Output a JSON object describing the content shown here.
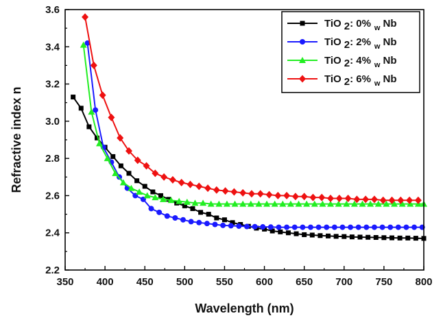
{
  "chart_data": {
    "type": "line",
    "title": "",
    "xlabel": "Wavelength (nm)",
    "ylabel": "Refractive index n",
    "xlim": [
      350,
      800
    ],
    "ylim": [
      2.2,
      3.6
    ],
    "xticks": [
      "350",
      "400",
      "450",
      "500",
      "550",
      "600",
      "650",
      "700",
      "750",
      "800"
    ],
    "yticks": [
      "2.2",
      "2.4",
      "2.6",
      "2.8",
      "3.0",
      "3.2",
      "3.4",
      "3.6"
    ],
    "grid": false,
    "legend_position": "top-right",
    "series": [
      {
        "name": "TiO 2: 0% w Nb",
        "legend": {
          "prefix": "TiO",
          "sub1": "2",
          "mid": ": 0%",
          "sub2": "w",
          "suffix": "Nb"
        },
        "color": "#000000",
        "marker": "square",
        "x": [
          360,
          370,
          380,
          390,
          400,
          410,
          420,
          430,
          440,
          450,
          460,
          470,
          480,
          490,
          500,
          510,
          520,
          530,
          540,
          550,
          560,
          570,
          580,
          590,
          600,
          610,
          620,
          630,
          640,
          650,
          660,
          670,
          680,
          690,
          700,
          710,
          720,
          730,
          740,
          750,
          760,
          770,
          780,
          790,
          800
        ],
        "y": [
          3.13,
          3.07,
          2.97,
          2.91,
          2.86,
          2.81,
          2.76,
          2.72,
          2.68,
          2.65,
          2.62,
          2.6,
          2.58,
          2.56,
          2.545,
          2.53,
          2.51,
          2.5,
          2.48,
          2.47,
          2.455,
          2.445,
          2.435,
          2.425,
          2.42,
          2.41,
          2.405,
          2.4,
          2.395,
          2.39,
          2.388,
          2.385,
          2.383,
          2.381,
          2.38,
          2.378,
          2.377,
          2.376,
          2.375,
          2.374,
          2.373,
          2.372,
          2.372,
          2.371,
          2.37
        ]
      },
      {
        "name": "TiO 2: 2% w Nb",
        "legend": {
          "prefix": "TiO",
          "sub1": "2",
          "mid": ": 2%",
          "sub2": "w",
          "suffix": "Nb"
        },
        "color": "#1a1aff",
        "marker": "circle",
        "x": [
          378,
          388,
          398,
          408,
          418,
          428,
          438,
          448,
          458,
          468,
          478,
          488,
          498,
          508,
          518,
          528,
          538,
          548,
          558,
          568,
          578,
          588,
          598,
          608,
          618,
          628,
          638,
          648,
          658,
          668,
          678,
          688,
          698,
          708,
          718,
          728,
          738,
          748,
          758,
          768,
          778,
          788,
          798
        ],
        "y": [
          3.42,
          3.06,
          2.86,
          2.78,
          2.7,
          2.64,
          2.6,
          2.58,
          2.53,
          2.51,
          2.49,
          2.48,
          2.47,
          2.46,
          2.455,
          2.45,
          2.445,
          2.44,
          2.438,
          2.436,
          2.434,
          2.433,
          2.432,
          2.431,
          2.43,
          2.43,
          2.43,
          2.43,
          2.43,
          2.43,
          2.43,
          2.43,
          2.43,
          2.43,
          2.43,
          2.43,
          2.43,
          2.43,
          2.43,
          2.43,
          2.43,
          2.43,
          2.43
        ]
      },
      {
        "name": "TiO 2: 4% w Nb",
        "legend": {
          "prefix": "TiO",
          "sub1": "2",
          "mid": ": 4%",
          "sub2": "w",
          "suffix": "Nb"
        },
        "color": "#22ee22",
        "marker": "triangle",
        "x": [
          373,
          383,
          393,
          403,
          413,
          423,
          433,
          443,
          453,
          463,
          473,
          483,
          493,
          503,
          513,
          523,
          533,
          543,
          553,
          563,
          573,
          583,
          593,
          603,
          613,
          623,
          633,
          643,
          653,
          663,
          673,
          683,
          693,
          703,
          713,
          723,
          733,
          743,
          753,
          763,
          773,
          783,
          793,
          800
        ],
        "y": [
          3.41,
          3.05,
          2.88,
          2.8,
          2.72,
          2.67,
          2.64,
          2.62,
          2.6,
          2.59,
          2.58,
          2.575,
          2.57,
          2.565,
          2.56,
          2.56,
          2.555,
          2.555,
          2.555,
          2.555,
          2.555,
          2.555,
          2.555,
          2.555,
          2.555,
          2.555,
          2.555,
          2.555,
          2.555,
          2.555,
          2.555,
          2.555,
          2.555,
          2.555,
          2.555,
          2.555,
          2.555,
          2.555,
          2.555,
          2.555,
          2.555,
          2.555,
          2.555,
          2.555
        ]
      },
      {
        "name": "TiO 2: 6% w Nb",
        "legend": {
          "prefix": "TiO",
          "sub1": "2",
          "mid": ": 6%",
          "sub2": "w",
          "suffix": "Nb"
        },
        "color": "#ee1111",
        "marker": "diamond",
        "x": [
          375,
          386,
          397,
          408,
          419,
          430,
          441,
          452,
          463,
          474,
          485,
          496,
          507,
          518,
          529,
          540,
          551,
          562,
          573,
          584,
          595,
          606,
          617,
          628,
          639,
          650,
          661,
          672,
          683,
          694,
          705,
          716,
          727,
          738,
          749,
          760,
          771,
          782,
          793
        ],
        "y": [
          3.56,
          3.3,
          3.14,
          3.02,
          2.91,
          2.84,
          2.79,
          2.76,
          2.72,
          2.7,
          2.685,
          2.67,
          2.66,
          2.65,
          2.64,
          2.63,
          2.625,
          2.62,
          2.615,
          2.61,
          2.61,
          2.605,
          2.6,
          2.6,
          2.595,
          2.595,
          2.59,
          2.59,
          2.585,
          2.585,
          2.585,
          2.58,
          2.58,
          2.58,
          2.575,
          2.575,
          2.575,
          2.575,
          2.575
        ]
      }
    ]
  }
}
